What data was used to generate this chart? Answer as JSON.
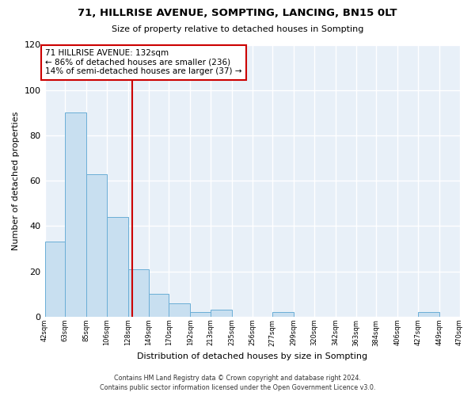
{
  "title": "71, HILLRISE AVENUE, SOMPTING, LANCING, BN15 0LT",
  "subtitle": "Size of property relative to detached houses in Sompting",
  "xlabel": "Distribution of detached houses by size in Sompting",
  "ylabel": "Number of detached properties",
  "bar_edges": [
    42,
    63,
    85,
    106,
    128,
    149,
    170,
    192,
    213,
    235,
    256,
    277,
    299,
    320,
    342,
    363,
    384,
    406,
    427,
    449,
    470
  ],
  "bar_heights": [
    33,
    90,
    63,
    44,
    21,
    10,
    6,
    2,
    3,
    0,
    0,
    2,
    0,
    0,
    0,
    0,
    0,
    0,
    2,
    0,
    0
  ],
  "bar_color": "#c8dff0",
  "bar_edge_color": "#6aaed6",
  "plot_bg_color": "#e8f0f8",
  "property_line_x": 132,
  "property_line_color": "#cc0000",
  "annotation_box_edge_color": "#cc0000",
  "annotation_line1": "71 HILLRISE AVENUE: 132sqm",
  "annotation_line2": "← 86% of detached houses are smaller (236)",
  "annotation_line3": "14% of semi-detached houses are larger (37) →",
  "ylim": [
    0,
    120
  ],
  "yticks": [
    0,
    20,
    40,
    60,
    80,
    100,
    120
  ],
  "xtick_labels": [
    "42sqm",
    "63sqm",
    "85sqm",
    "106sqm",
    "128sqm",
    "149sqm",
    "170sqm",
    "192sqm",
    "213sqm",
    "235sqm",
    "256sqm",
    "277sqm",
    "299sqm",
    "320sqm",
    "342sqm",
    "363sqm",
    "384sqm",
    "406sqm",
    "427sqm",
    "449sqm",
    "470sqm"
  ],
  "footer_line1": "Contains HM Land Registry data © Crown copyright and database right 2024.",
  "footer_line2": "Contains public sector information licensed under the Open Government Licence v3.0."
}
